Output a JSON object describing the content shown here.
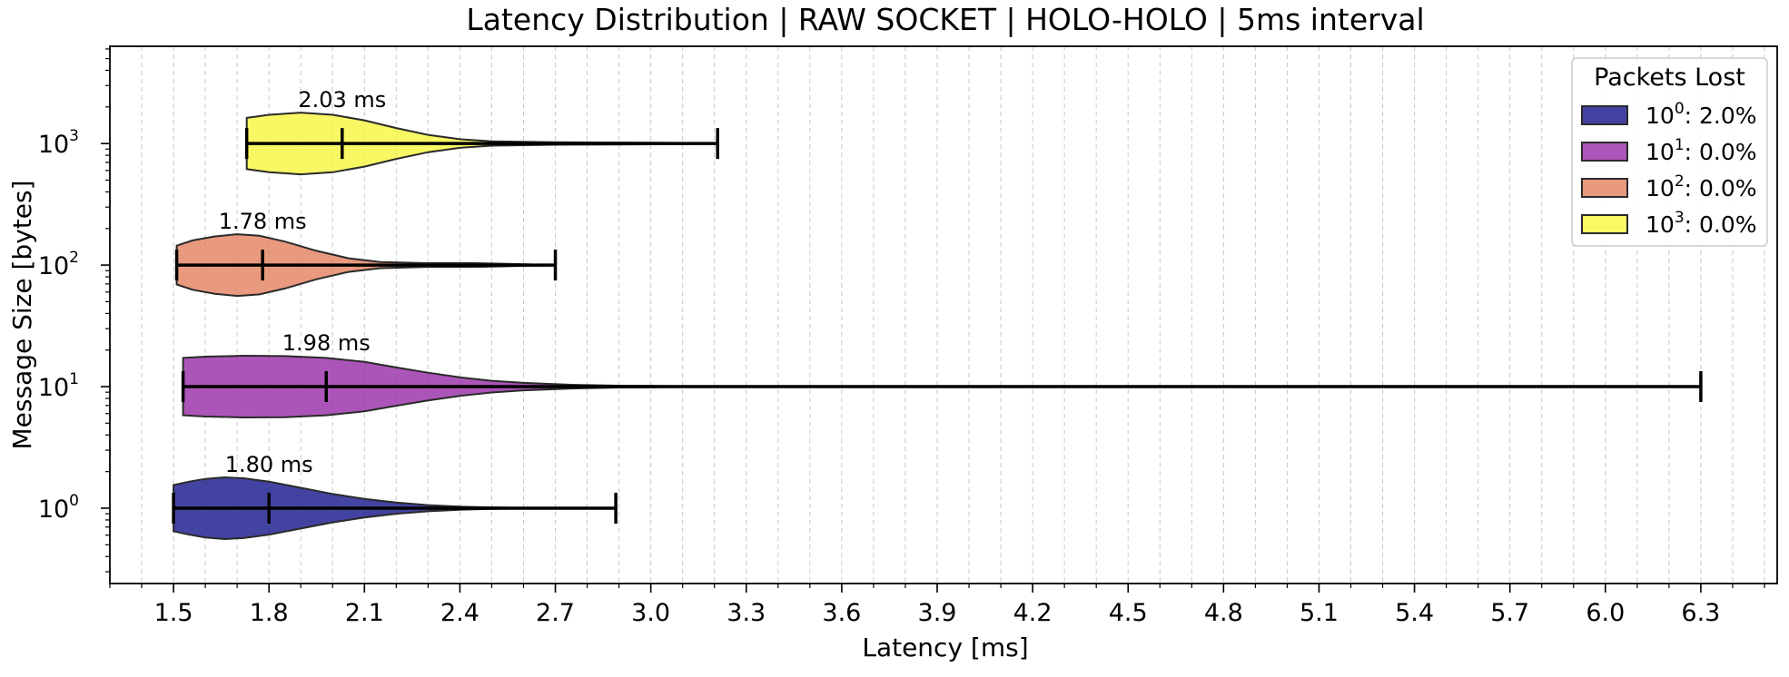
{
  "chart_data": {
    "type": "violin",
    "title": "Latency Distribution | RAW SOCKET | HOLO-HOLO | 5ms interval",
    "xlabel": "Latency [ms]",
    "ylabel": "Message Size [bytes]",
    "xlim": [
      1.3,
      6.54
    ],
    "ylog_exponent_range": [
      -0.62,
      3.8
    ],
    "xticks": [
      "1.5",
      "1.8",
      "2.1",
      "2.4",
      "2.7",
      "3.0",
      "3.3",
      "3.6",
      "3.9",
      "4.2",
      "4.5",
      "4.8",
      "5.1",
      "5.4",
      "5.7",
      "6.0",
      "6.3"
    ],
    "yticks": [
      {
        "base": "10",
        "exp": "0"
      },
      {
        "base": "10",
        "exp": "1"
      },
      {
        "base": "10",
        "exp": "2"
      },
      {
        "base": "10",
        "exp": "3"
      }
    ],
    "grid": {
      "x": true,
      "y": false
    },
    "legend": {
      "title": "Packets Lost",
      "position": "top-right",
      "entries": [
        {
          "base": "10",
          "exp": "0",
          "text": ": 2.0%",
          "color": "#1a1a8c"
        },
        {
          "base": "10",
          "exp": "1",
          "text": ": 0.0%",
          "color": "#9a30a8"
        },
        {
          "base": "10",
          "exp": "2",
          "text": ": 0.0%",
          "color": "#e38361"
        },
        {
          "base": "10",
          "exp": "3",
          "text": ": 0.0%",
          "color": "#f7f542"
        }
      ]
    },
    "series": [
      {
        "size_exp": 0,
        "color": "#1a1a8c",
        "min": 1.5,
        "median": 1.8,
        "max": 2.89,
        "median_label": "1.80 ms",
        "density": [
          [
            1.5,
            0.75
          ],
          [
            1.55,
            0.86
          ],
          [
            1.6,
            0.95
          ],
          [
            1.66,
            1.0
          ],
          [
            1.72,
            0.97
          ],
          [
            1.8,
            0.86
          ],
          [
            1.9,
            0.66
          ],
          [
            2.0,
            0.46
          ],
          [
            2.1,
            0.3
          ],
          [
            2.2,
            0.18
          ],
          [
            2.3,
            0.1
          ],
          [
            2.4,
            0.05
          ],
          [
            2.5,
            0.025
          ],
          [
            2.6,
            0.012
          ],
          [
            2.7,
            0.006
          ],
          [
            2.8,
            0.003
          ],
          [
            2.89,
            0.001
          ]
        ]
      },
      {
        "size_exp": 1,
        "color": "#9a30a8",
        "min": 1.53,
        "median": 1.98,
        "max": 6.3,
        "median_label": "1.98 ms",
        "density": [
          [
            1.53,
            0.93
          ],
          [
            1.6,
            0.97
          ],
          [
            1.72,
            1.0
          ],
          [
            1.85,
            0.99
          ],
          [
            1.98,
            0.93
          ],
          [
            2.1,
            0.8
          ],
          [
            2.2,
            0.62
          ],
          [
            2.3,
            0.45
          ],
          [
            2.4,
            0.3
          ],
          [
            2.5,
            0.19
          ],
          [
            2.6,
            0.12
          ],
          [
            2.75,
            0.06
          ],
          [
            2.9,
            0.03
          ],
          [
            3.1,
            0.015
          ],
          [
            3.5,
            0.007
          ],
          [
            4.2,
            0.003
          ],
          [
            5.2,
            0.002
          ],
          [
            6.3,
            0.001
          ]
        ]
      },
      {
        "size_exp": 2,
        "color": "#e38361",
        "min": 1.51,
        "median": 1.78,
        "max": 2.7,
        "median_label": "1.78 ms",
        "density": [
          [
            1.51,
            0.63
          ],
          [
            1.56,
            0.8
          ],
          [
            1.63,
            0.93
          ],
          [
            1.7,
            1.0
          ],
          [
            1.77,
            0.95
          ],
          [
            1.85,
            0.76
          ],
          [
            1.95,
            0.46
          ],
          [
            2.05,
            0.22
          ],
          [
            2.15,
            0.1
          ],
          [
            2.3,
            0.06
          ],
          [
            2.45,
            0.06
          ],
          [
            2.55,
            0.04
          ],
          [
            2.62,
            0.02
          ],
          [
            2.7,
            0.001
          ]
        ]
      },
      {
        "size_exp": 3,
        "color": "#f7f542",
        "min": 1.73,
        "median": 2.03,
        "max": 3.21,
        "median_label": "2.03 ms",
        "density": [
          [
            1.73,
            0.83
          ],
          [
            1.8,
            0.93
          ],
          [
            1.9,
            1.0
          ],
          [
            2.0,
            0.93
          ],
          [
            2.1,
            0.75
          ],
          [
            2.2,
            0.5
          ],
          [
            2.3,
            0.28
          ],
          [
            2.4,
            0.14
          ],
          [
            2.5,
            0.07
          ],
          [
            2.7,
            0.04
          ],
          [
            2.9,
            0.03
          ],
          [
            3.1,
            0.02
          ],
          [
            3.21,
            0.001
          ]
        ]
      }
    ]
  }
}
